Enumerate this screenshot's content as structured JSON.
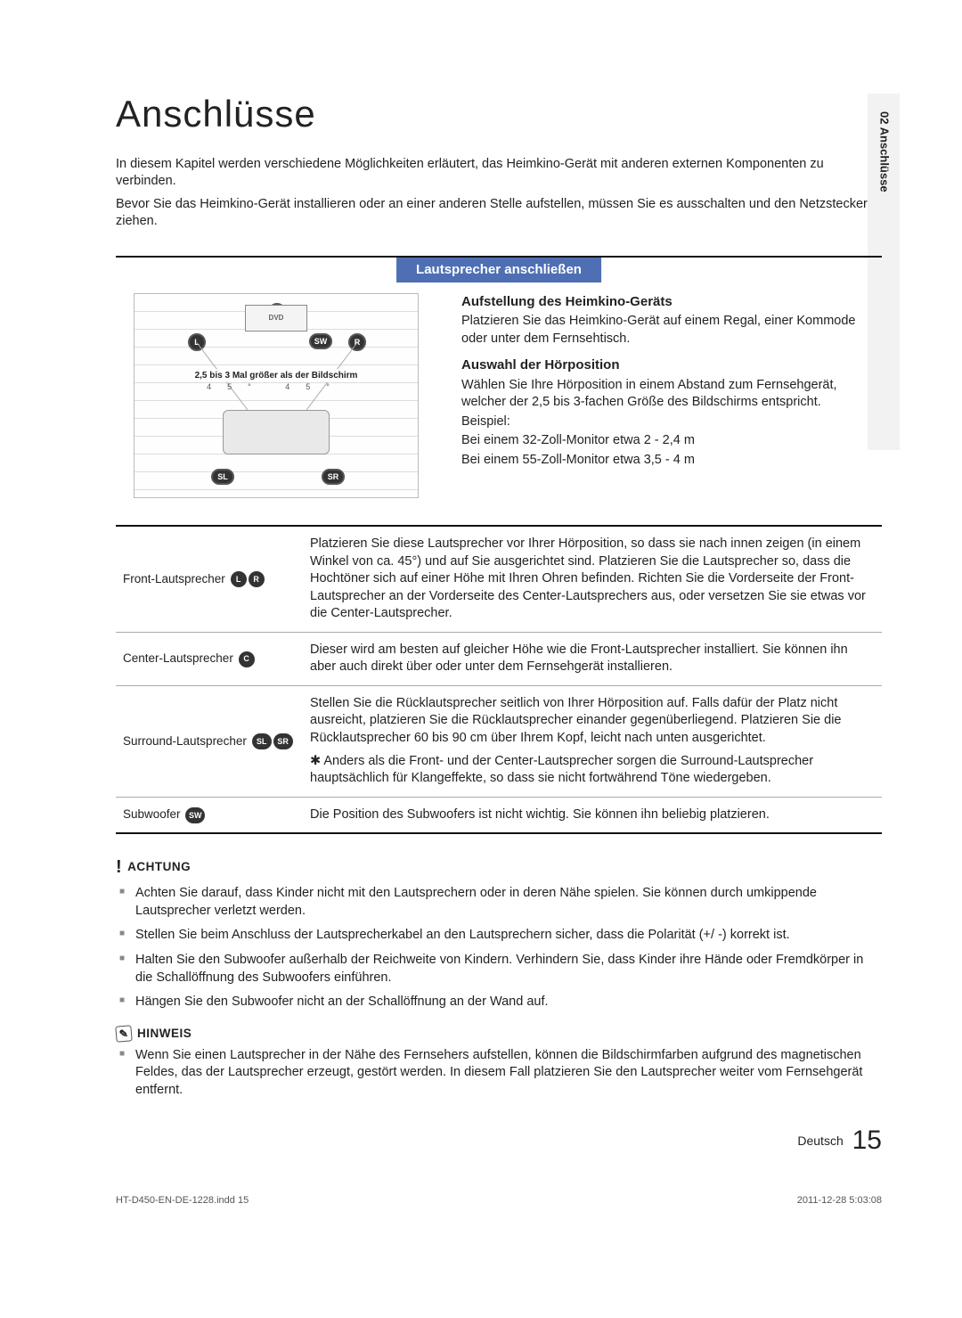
{
  "side_tab": "02  Anschlüsse",
  "title": "Anschlüsse",
  "intro1": "In diesem Kapitel werden verschiedene Möglichkeiten erläutert, das Heimkino-Gerät mit anderen externen Komponenten zu verbinden.",
  "intro2": "Bevor Sie das Heimkino-Gerät installieren oder an einer anderen Stelle aufstellen, müssen Sie es ausschalten und den Netzstecker ziehen.",
  "section_heading": "Lautsprecher anschließen",
  "diagram": {
    "tv_label": "DVD",
    "note": "2,5 bis 3 Mal größer als der Bildschirm",
    "angles": "45°  45°",
    "labels": {
      "c": "C",
      "l": "L",
      "r": "R",
      "sw": "SW",
      "sl": "SL",
      "sr": "SR"
    }
  },
  "right": {
    "h1": "Aufstellung des Heimkino-Geräts",
    "p1": "Platzieren Sie das Heimkino-Gerät auf einem Regal, einer Kommode oder unter dem Fernsehtisch.",
    "h2": "Auswahl der Hörposition",
    "p2": "Wählen Sie Ihre Hörposition in einem Abstand zum Fernsehgerät, welcher der 2,5 bis 3-fachen Größe des Bildschirms entspricht.",
    "p3": "Beispiel:",
    "p4": "Bei einem 32-Zoll-Monitor etwa 2 - 2,4 m",
    "p5": "Bei einem 55-Zoll-Monitor etwa 3,5 - 4 m"
  },
  "table": {
    "rows": [
      {
        "name": "Front-Lautsprecher",
        "badges": [
          "L",
          "R"
        ],
        "badge_shape": "round",
        "desc": "Platzieren Sie diese Lautsprecher vor Ihrer Hörposition, so dass sie nach innen zeigen (in einem Winkel von ca. 45°) und auf Sie ausgerichtet sind. Platzieren Sie die Lautsprecher so, dass die Hochtöner sich auf einer Höhe mit Ihren Ohren befinden. Richten Sie die Vorderseite der Front-Lautsprecher an der Vorderseite des Center-Lautsprechers aus, oder versetzen Sie sie etwas vor die Center-Lautsprecher."
      },
      {
        "name": "Center-Lautsprecher",
        "badges": [
          "C"
        ],
        "badge_shape": "round",
        "desc": "Dieser wird am besten auf gleicher Höhe wie die Front-Lautsprecher installiert. Sie können ihn aber auch direkt über oder unter dem Fernsehgerät installieren."
      },
      {
        "name": "Surround-Lautsprecher",
        "badges": [
          "SL",
          "SR"
        ],
        "badge_shape": "oval",
        "desc": "Stellen Sie die Rücklautsprecher seitlich von Ihrer Hörposition auf. Falls dafür der Platz nicht ausreicht, platzieren Sie die Rücklautsprecher einander gegenüberliegend. Platzieren Sie die Rücklautsprecher 60 bis 90 cm über Ihrem Kopf, leicht nach unten ausgerichtet.",
        "star": "Anders als die Front- und der Center-Lautsprecher sorgen die Surround-Lautsprecher hauptsächlich für Klangeffekte, so dass sie nicht fortwährend Töne wiedergeben."
      },
      {
        "name": "Subwoofer",
        "badges": [
          "SW"
        ],
        "badge_shape": "oval",
        "desc": "Die Position des Subwoofers ist nicht wichtig. Sie können ihn beliebig platzieren."
      }
    ]
  },
  "caution": {
    "title": "ACHTUNG",
    "items": [
      "Achten Sie darauf, dass Kinder nicht mit den Lautsprechern oder in deren Nähe spielen. Sie können durch umkippende Lautsprecher verletzt werden.",
      "Stellen Sie beim Anschluss der Lautsprecherkabel an den Lautsprechern sicher, dass die Polarität (+/ -) korrekt ist.",
      "Halten Sie den Subwoofer außerhalb der Reichweite von Kindern. Verhindern Sie, dass Kinder ihre Hände oder Fremdkörper in die Schallöffnung des Subwoofers einführen.",
      "Hängen Sie den Subwoofer nicht an der Schallöffnung an der Wand auf."
    ]
  },
  "hinweis": {
    "title": "HINWEIS",
    "items": [
      "Wenn Sie einen Lautsprecher in der Nähe des Fernsehers aufstellen, können die Bildschirmfarben aufgrund des magnetischen Feldes, das der Lautsprecher erzeugt, gestört werden. In diesem Fall platzieren Sie den Lautsprecher weiter vom Fernsehgerät entfernt."
    ]
  },
  "footer": {
    "lang": "Deutsch",
    "page": "15"
  },
  "printline": {
    "left": "HT-D450-EN-DE-1228.indd   15",
    "right": "2011-12-28    5:03:08"
  }
}
